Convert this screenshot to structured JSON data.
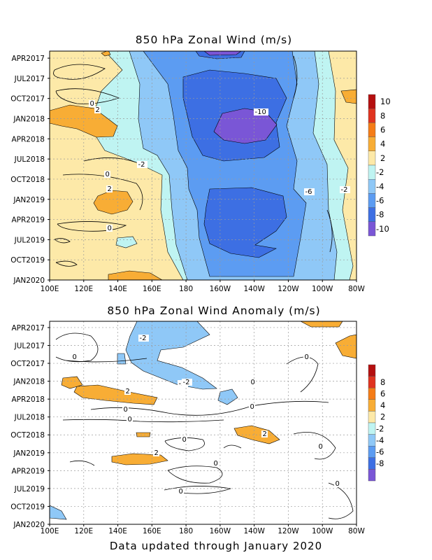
{
  "chart_data": [
    {
      "type": "heatmap",
      "title": "850 hPa Zonal Wind (m/s)",
      "xlabel": "",
      "ylabel": "",
      "x_tick_labels": [
        "100E",
        "120E",
        "140E",
        "160E",
        "180",
        "160W",
        "140W",
        "120W",
        "100W",
        "80W"
      ],
      "y_tick_labels": [
        "APR2017",
        "JUL2017",
        "OCT2017",
        "JAN2018",
        "APR2018",
        "JUL2018",
        "OCT2018",
        "JAN2019",
        "APR2019",
        "JUL2019",
        "OCT2019",
        "JAN2020"
      ],
      "colorbar_labels": [
        "10",
        "8",
        "6",
        "4",
        "2",
        "-2",
        "-4",
        "-6",
        "-8",
        "-10"
      ],
      "colorbar_colors": [
        "#b50f0f",
        "#e0331f",
        "#f57c16",
        "#f8ad35",
        "#fde9a8",
        "#bff4f2",
        "#8fc8f7",
        "#5c9cf2",
        "#3d6fe3",
        "#7a56d6"
      ],
      "contour_labels": [
        "0",
        "2",
        "-2",
        "-6",
        "-10",
        "2",
        "0",
        "2",
        "0",
        "-2"
      ],
      "grid": true,
      "summary_values": {
        "lon_ticks": [
          100,
          120,
          140,
          160,
          180,
          200,
          220,
          240,
          260,
          280
        ],
        "easterly_core_min": -10,
        "westerly_max": 4
      }
    },
    {
      "type": "heatmap",
      "title": "850 hPa Zonal Wind Anomaly (m/s)",
      "xlabel": "",
      "ylabel": "",
      "x_tick_labels": [
        "100E",
        "120E",
        "140E",
        "160E",
        "180",
        "160W",
        "140W",
        "120W",
        "100W",
        "80W"
      ],
      "y_tick_labels": [
        "APR2017",
        "JUL2017",
        "OCT2017",
        "JAN2018",
        "APR2018",
        "JUL2018",
        "OCT2018",
        "JAN2019",
        "APR2019",
        "JUL2019",
        "OCT2019",
        "JAN2020"
      ],
      "colorbar_labels": [
        "8",
        "6",
        "4",
        "2",
        "-2",
        "-4",
        "-6",
        "-8"
      ],
      "colorbar_colors": [
        "#b50f0f",
        "#e0331f",
        "#f57c16",
        "#f8ad35",
        "#fde9a8",
        "#bff4f2",
        "#8fc8f7",
        "#5c9cf2",
        "#3d6fe3",
        "#7a56d6"
      ],
      "contour_labels": [
        "-2",
        "0",
        "0",
        "2",
        "-2",
        "-2",
        "0",
        "0",
        "0",
        "-2",
        "2",
        "0",
        "2",
        "0",
        "0",
        "0",
        "0"
      ],
      "grid": true,
      "summary_values": {
        "lon_ticks": [
          100,
          120,
          140,
          160,
          180,
          200,
          220,
          240,
          260,
          280
        ],
        "anomaly_min": -2,
        "anomaly_max": 2
      }
    }
  ],
  "footer": "Data updated through January 2020"
}
